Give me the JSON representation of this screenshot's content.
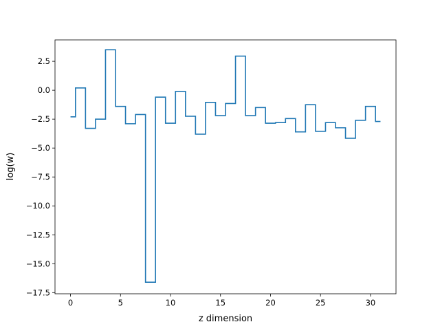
{
  "chart_data": {
    "type": "line",
    "drawstyle": "steps-mid",
    "title": "",
    "xlabel": "z dimension",
    "ylabel": "log(w)",
    "xlim": [
      -1.55,
      32.55
    ],
    "ylim": [
      -17.6,
      4.35
    ],
    "xticks": [
      0,
      5,
      10,
      15,
      20,
      25,
      30
    ],
    "xtick_labels": [
      "0",
      "5",
      "10",
      "15",
      "20",
      "25",
      "30"
    ],
    "yticks": [
      2.5,
      0.0,
      -2.5,
      -5.0,
      -7.5,
      -10.0,
      -12.5,
      -15.0,
      -17.5
    ],
    "ytick_labels": [
      "2.5",
      "0.0",
      "−2.5",
      "−5.0",
      "−7.5",
      "−10.0",
      "−12.5",
      "−15.0",
      "−17.5"
    ],
    "grid": false,
    "line_color": "#1f77b4",
    "series": [
      {
        "x": [
          0,
          1,
          2,
          3,
          4,
          5,
          6,
          7,
          8,
          9,
          10,
          11,
          12,
          13,
          14,
          15,
          16,
          17,
          18,
          19,
          20,
          21,
          22,
          23,
          24,
          25,
          26,
          27,
          28,
          29,
          30,
          31
        ],
        "values": [
          -2.3,
          0.2,
          -3.3,
          -2.5,
          3.5,
          -1.4,
          -2.9,
          -2.1,
          -16.6,
          -0.6,
          -2.85,
          -0.1,
          -2.25,
          -3.8,
          -1.05,
          -2.2,
          -1.15,
          2.95,
          -2.2,
          -1.5,
          -2.85,
          -2.8,
          -2.45,
          -3.6,
          -1.25,
          -3.55,
          -2.8,
          -3.25,
          -4.15,
          -2.6,
          -1.4,
          -2.7
        ]
      }
    ]
  }
}
